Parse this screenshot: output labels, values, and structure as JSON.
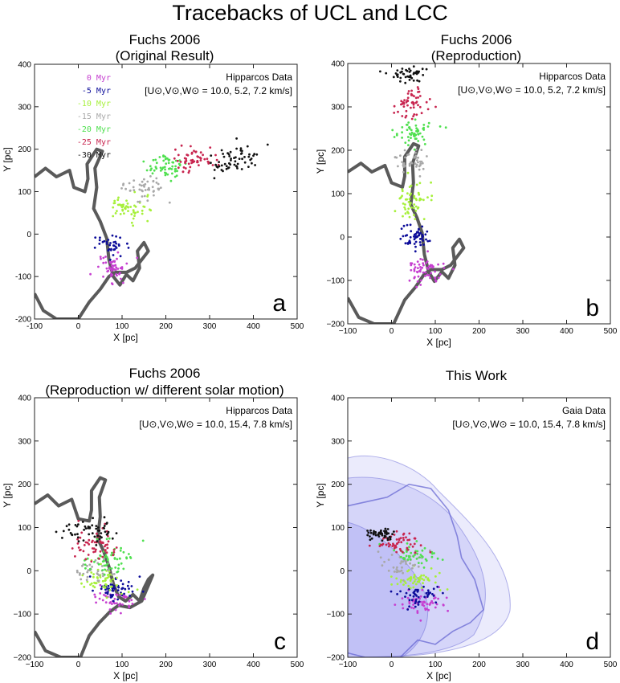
{
  "figure": {
    "title": "Tracebacks of UCL and LCC"
  },
  "palette": {
    "0": "#c63fd0",
    "-5": "#0c0c9a",
    "-10": "#a6f03a",
    "-15": "#a8a8a8",
    "-20": "#4fe04f",
    "-25": "#c8254f",
    "-30": "#111111",
    "outline": "#5a5a5a",
    "envelope": "#8f8ff0"
  },
  "legend": {
    "entries": [
      {
        "label": "0  Myr",
        "key": "0"
      },
      {
        "label": "-5  Myr",
        "key": "-5"
      },
      {
        "label": "-10  Myr",
        "key": "-10"
      },
      {
        "label": "-15  Myr",
        "key": "-15"
      },
      {
        "label": "-20  Myr",
        "key": "-20"
      },
      {
        "label": "-25  Myr",
        "key": "-25"
      },
      {
        "label": "-30  Myr",
        "key": "-30"
      }
    ]
  },
  "panels": [
    {
      "id": "a",
      "title_line1": "Fuchs 2006",
      "title_line2": "(Original Result)",
      "data_source": "Hipparcos Data",
      "solar_motion": "[U⊙,V⊙,W⊙ = 10.0, 5.2, 7.2 km/s]",
      "letter": "a",
      "xlabel": "X  [pc]",
      "ylabel": "Y  [pc]",
      "xlim": [
        -100,
        500
      ],
      "ylim": [
        -200,
        400
      ],
      "xticks": [
        "-100",
        "0",
        "100",
        "200",
        "300",
        "400",
        "500"
      ],
      "yticks": [
        "-200",
        "-100",
        "0",
        "100",
        "200",
        "300",
        "400"
      ]
    },
    {
      "id": "b",
      "title_line1": "Fuchs 2006",
      "title_line2": "(Reproduction)",
      "data_source": "Hipparcos Data",
      "solar_motion": "[U⊙,V⊙,W⊙ = 10.0, 5.2, 7.2 km/s]",
      "letter": "b",
      "xlabel": "X [pc]",
      "ylabel": "Y [pc]",
      "xlim": [
        -100,
        500
      ],
      "ylim": [
        -200,
        400
      ],
      "xticks": [
        "−100",
        "0",
        "100",
        "200",
        "300",
        "400",
        "500"
      ],
      "yticks": [
        "−200",
        "−100",
        "0",
        "100",
        "200",
        "300",
        "400"
      ]
    },
    {
      "id": "c",
      "title_line1": "Fuchs 2006",
      "title_line2": "(Reproduction w/ different solar motion)",
      "data_source": "Hipparcos Data",
      "solar_motion": "[U⊙,V⊙,W⊙ = 10.0, 15.4, 7.8 km/s]",
      "letter": "c",
      "xlabel": "X [pc]",
      "ylabel": "Y [pc]",
      "xlim": [
        -100,
        500
      ],
      "ylim": [
        -200,
        400
      ],
      "xticks": [
        "−100",
        "0",
        "100",
        "200",
        "300",
        "400",
        "500"
      ],
      "yticks": [
        "−200",
        "−100",
        "0",
        "100",
        "200",
        "300",
        "400"
      ]
    },
    {
      "id": "d",
      "title_line1": "This Work",
      "title_line2": "",
      "data_source": "Gaia Data",
      "solar_motion": "[U⊙,V⊙,W⊙ = 10.0, 15.4, 7.8 km/s]",
      "letter": "d",
      "xlabel": "X [pc]",
      "ylabel": "Y [pc]",
      "xlim": [
        -100,
        500
      ],
      "ylim": [
        -200,
        400
      ],
      "xticks": [
        "−100",
        "0",
        "100",
        "200",
        "300",
        "400",
        "500"
      ],
      "yticks": [
        "−200",
        "−100",
        "0",
        "100",
        "200",
        "300",
        "400"
      ]
    }
  ],
  "chart_data": [
    {
      "panel": "a",
      "type": "scatter",
      "outline_pc": [
        [
          -100,
          135
        ],
        [
          -75,
          155
        ],
        [
          -50,
          135
        ],
        [
          -20,
          150
        ],
        [
          -10,
          110
        ],
        [
          15,
          100
        ],
        [
          22,
          130
        ],
        [
          20,
          165
        ],
        [
          42,
          200
        ],
        [
          55,
          195
        ],
        [
          38,
          155
        ],
        [
          42,
          110
        ],
        [
          35,
          60
        ],
        [
          50,
          30
        ],
        [
          65,
          -10
        ],
        [
          70,
          -60
        ],
        [
          80,
          -100
        ],
        [
          95,
          -120
        ],
        [
          110,
          -95
        ],
        [
          125,
          -110
        ],
        [
          140,
          -80
        ],
        [
          135,
          -40
        ],
        [
          150,
          -20
        ],
        [
          160,
          -40
        ],
        [
          130,
          -80
        ],
        [
          110,
          -90
        ],
        [
          85,
          -90
        ],
        [
          70,
          -100
        ],
        [
          50,
          -130
        ],
        [
          25,
          -160
        ],
        [
          0,
          -200
        ],
        [
          -50,
          -200
        ],
        [
          -80,
          -180
        ],
        [
          -100,
          -140
        ]
      ],
      "series": [
        {
          "name": "0 Myr",
          "key": "0",
          "cx": 70,
          "cy": -80,
          "sx": 35,
          "sy": 30,
          "n": 55
        },
        {
          "name": "-5 Myr",
          "key": "-5",
          "cx": 75,
          "cy": -25,
          "sx": 35,
          "sy": 20,
          "n": 35
        },
        {
          "name": "-10 Myr",
          "key": "-10",
          "cx": 110,
          "cy": 60,
          "sx": 40,
          "sy": 30,
          "n": 55
        },
        {
          "name": "-15 Myr",
          "key": "-15",
          "cx": 150,
          "cy": 110,
          "sx": 40,
          "sy": 25,
          "n": 45
        },
        {
          "name": "-20 Myr",
          "key": "-20",
          "cx": 200,
          "cy": 160,
          "sx": 40,
          "sy": 25,
          "n": 55
        },
        {
          "name": "-25 Myr",
          "key": "-25",
          "cx": 270,
          "cy": 175,
          "sx": 45,
          "sy": 25,
          "n": 55
        },
        {
          "name": "-30 Myr",
          "key": "-30",
          "cx": 360,
          "cy": 175,
          "sx": 50,
          "sy": 30,
          "n": 60
        }
      ]
    },
    {
      "panel": "b",
      "type": "scatter",
      "outline_pc": [
        [
          -100,
          150
        ],
        [
          -70,
          170
        ],
        [
          -45,
          150
        ],
        [
          -15,
          165
        ],
        [
          0,
          125
        ],
        [
          25,
          115
        ],
        [
          30,
          140
        ],
        [
          30,
          185
        ],
        [
          50,
          215
        ],
        [
          62,
          210
        ],
        [
          48,
          170
        ],
        [
          50,
          125
        ],
        [
          44,
          75
        ],
        [
          58,
          45
        ],
        [
          70,
          10
        ],
        [
          75,
          -40
        ],
        [
          85,
          -80
        ],
        [
          98,
          -102
        ],
        [
          115,
          -80
        ],
        [
          130,
          -95
        ],
        [
          145,
          -65
        ],
        [
          140,
          -25
        ],
        [
          155,
          -5
        ],
        [
          165,
          -25
        ],
        [
          135,
          -65
        ],
        [
          115,
          -75
        ],
        [
          90,
          -75
        ],
        [
          75,
          -85
        ],
        [
          55,
          -115
        ],
        [
          30,
          -145
        ],
        [
          5,
          -200
        ],
        [
          -40,
          -200
        ],
        [
          -75,
          -185
        ],
        [
          -100,
          -140
        ]
      ],
      "series": [
        {
          "name": "0 Myr",
          "key": "0",
          "cx": 75,
          "cy": -75,
          "sx": 35,
          "sy": 30,
          "n": 60
        },
        {
          "name": "-5 Myr",
          "key": "-5",
          "cx": 55,
          "cy": 0,
          "sx": 35,
          "sy": 25,
          "n": 55
        },
        {
          "name": "-10 Myr",
          "key": "-10",
          "cx": 50,
          "cy": 80,
          "sx": 35,
          "sy": 35,
          "n": 55
        },
        {
          "name": "-15 Myr",
          "key": "-15",
          "cx": 50,
          "cy": 175,
          "sx": 35,
          "sy": 25,
          "n": 45
        },
        {
          "name": "-20 Myr",
          "key": "-20",
          "cx": 50,
          "cy": 240,
          "sx": 35,
          "sy": 25,
          "n": 55
        },
        {
          "name": "-25 Myr",
          "key": "-25",
          "cx": 50,
          "cy": 310,
          "sx": 35,
          "sy": 25,
          "n": 55
        },
        {
          "name": "-30 Myr",
          "key": "-30",
          "cx": 40,
          "cy": 375,
          "sx": 35,
          "sy": 15,
          "n": 45
        }
      ]
    },
    {
      "panel": "c",
      "type": "scatter",
      "outline_pc": [
        [
          -100,
          155
        ],
        [
          -70,
          175
        ],
        [
          -45,
          150
        ],
        [
          -15,
          165
        ],
        [
          0,
          120
        ],
        [
          25,
          115
        ],
        [
          30,
          140
        ],
        [
          30,
          185
        ],
        [
          50,
          215
        ],
        [
          62,
          210
        ],
        [
          48,
          170
        ],
        [
          50,
          125
        ],
        [
          44,
          75
        ],
        [
          58,
          45
        ],
        [
          70,
          10
        ],
        [
          80,
          -30
        ],
        [
          92,
          -60
        ],
        [
          108,
          -70
        ],
        [
          125,
          -55
        ],
        [
          140,
          -70
        ],
        [
          150,
          -40
        ],
        [
          160,
          -20
        ],
        [
          170,
          -10
        ],
        [
          145,
          -70
        ],
        [
          118,
          -85
        ],
        [
          92,
          -80
        ],
        [
          72,
          -95
        ],
        [
          48,
          -120
        ],
        [
          25,
          -150
        ],
        [
          5,
          -200
        ],
        [
          -40,
          -200
        ],
        [
          -75,
          -185
        ],
        [
          -100,
          -140
        ]
      ],
      "series": [
        {
          "name": "0 Myr",
          "key": "0",
          "cx": 80,
          "cy": -70,
          "sx": 35,
          "sy": 25,
          "n": 45
        },
        {
          "name": "-5 Myr",
          "key": "-5",
          "cx": 90,
          "cy": -40,
          "sx": 40,
          "sy": 25,
          "n": 55
        },
        {
          "name": "-10 Myr",
          "key": "-10",
          "cx": 60,
          "cy": -20,
          "sx": 40,
          "sy": 25,
          "n": 55
        },
        {
          "name": "-15 Myr",
          "key": "-15",
          "cx": 35,
          "cy": 0,
          "sx": 35,
          "sy": 25,
          "n": 40
        },
        {
          "name": "-20 Myr",
          "key": "-20",
          "cx": 70,
          "cy": 30,
          "sx": 45,
          "sy": 30,
          "n": 55
        },
        {
          "name": "-25 Myr",
          "key": "-25",
          "cx": 40,
          "cy": 55,
          "sx": 45,
          "sy": 30,
          "n": 55
        },
        {
          "name": "-30 Myr",
          "key": "-30",
          "cx": 30,
          "cy": 95,
          "sx": 45,
          "sy": 25,
          "n": 55
        }
      ]
    },
    {
      "panel": "d",
      "type": "scatter",
      "outline_pc": [
        [
          -100,
          150
        ],
        [
          -55,
          160
        ],
        [
          -10,
          170
        ],
        [
          40,
          200
        ],
        [
          90,
          190
        ],
        [
          130,
          140
        ],
        [
          150,
          80
        ],
        [
          160,
          30
        ],
        [
          190,
          -20
        ],
        [
          210,
          -90
        ],
        [
          180,
          -120
        ],
        [
          140,
          -140
        ],
        [
          100,
          -170
        ],
        [
          60,
          -160
        ],
        [
          20,
          -200
        ],
        [
          -60,
          -200
        ],
        [
          -100,
          -190
        ]
      ],
      "series": [
        {
          "name": "0 Myr",
          "key": "0",
          "cx": 70,
          "cy": -75,
          "sx": 40,
          "sy": 25,
          "n": 55
        },
        {
          "name": "-5 Myr",
          "key": "-5",
          "cx": 60,
          "cy": -55,
          "sx": 40,
          "sy": 20,
          "n": 45
        },
        {
          "name": "-10 Myr",
          "key": "-10",
          "cx": 55,
          "cy": -20,
          "sx": 45,
          "sy": 25,
          "n": 50
        },
        {
          "name": "-15 Myr",
          "key": "-15",
          "cx": 25,
          "cy": 20,
          "sx": 40,
          "sy": 25,
          "n": 40
        },
        {
          "name": "-20 Myr",
          "key": "-20",
          "cx": 60,
          "cy": 40,
          "sx": 45,
          "sy": 25,
          "n": 45
        },
        {
          "name": "-25 Myr",
          "key": "-25",
          "cx": 20,
          "cy": 60,
          "sx": 40,
          "sy": 25,
          "n": 55
        },
        {
          "name": "-30 Myr",
          "key": "-30",
          "cx": -25,
          "cy": 85,
          "sx": 25,
          "sy": 12,
          "n": 45
        }
      ]
    }
  ]
}
